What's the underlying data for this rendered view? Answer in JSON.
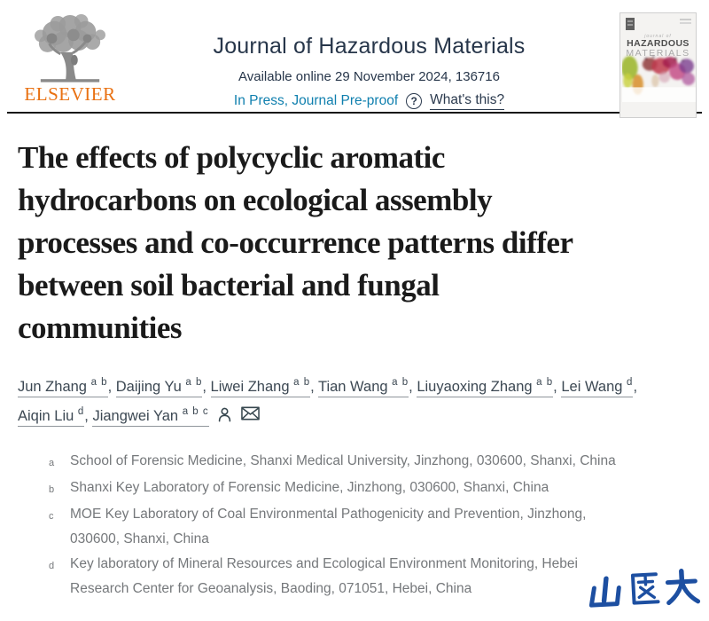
{
  "header": {
    "publisher_wordmark": "ELSEVIER",
    "journal_title": "Journal of Hazardous Materials",
    "available_online": "Available online 29 November 2024, 136716",
    "in_press_link": "In Press, Journal Pre-proof",
    "help_glyph": "?",
    "whats_this_link": "What's this?",
    "cover_thumb": {
      "kicker": "journal of",
      "title_line1": "HAZARDOUS",
      "title_line2": "MATERIALS"
    }
  },
  "article": {
    "title_lines": [
      "The effects of polycyclic aromatic",
      "hydrocarbons on ecological assembly",
      "processes and co-occurrence patterns differ",
      "between soil bacterial and fungal",
      "communities"
    ],
    "authors_line1": [
      {
        "name": "Jun Zhang",
        "sup": "a b"
      },
      {
        "name": "Daijing Yu",
        "sup": "a b"
      },
      {
        "name": "Liwei Zhang",
        "sup": "a b"
      },
      {
        "name": "Tian Wang",
        "sup": "a b"
      },
      {
        "name": "Liuyaoxing Zhang",
        "sup": "a b"
      },
      {
        "name": "Lei Wang",
        "sup": "d"
      }
    ],
    "authors_line2": [
      {
        "name": "Aiqin Liu",
        "sup": "d"
      },
      {
        "name": "Jiangwei Yan",
        "sup": "a b c"
      }
    ],
    "affiliations": [
      {
        "label": "a",
        "lines": [
          "School of Forensic Medicine, Shanxi Medical University, Jinzhong, 030600, Shanxi, China"
        ]
      },
      {
        "label": "b",
        "lines": [
          "Shanxi Key Laboratory of Forensic Medicine, Jinzhong, 030600, Shanxi, China"
        ]
      },
      {
        "label": "c",
        "lines": [
          "MOE Key Laboratory of Coal Environmental Pathogenicity and Prevention, Jinzhong,",
          "030600, Shanxi, China"
        ]
      },
      {
        "label": "d",
        "lines": [
          "Key laboratory of Mineral Resources and Ecological Environment Monitoring, Hebei",
          "Research Center for Geoanalysis, Baoding, 071051, Hebei, China"
        ]
      }
    ]
  },
  "watermark": {
    "text": "山医大"
  },
  "icons": {
    "publisher_logo": "elsevier-tree-icon",
    "help": "question-circle-icon",
    "corresponding_author": "person-icon",
    "email": "envelope-icon"
  },
  "colors": {
    "elsevier_orange": "#e97112",
    "header_navy": "#27364a",
    "in_press_teal": "#0f7fae",
    "title_black": "#1a1a1a",
    "author_text": "#3c4853",
    "affiliation_gray": "#75787b",
    "watermark_blue": "#1d4fa1",
    "divider_black": "#161616"
  }
}
